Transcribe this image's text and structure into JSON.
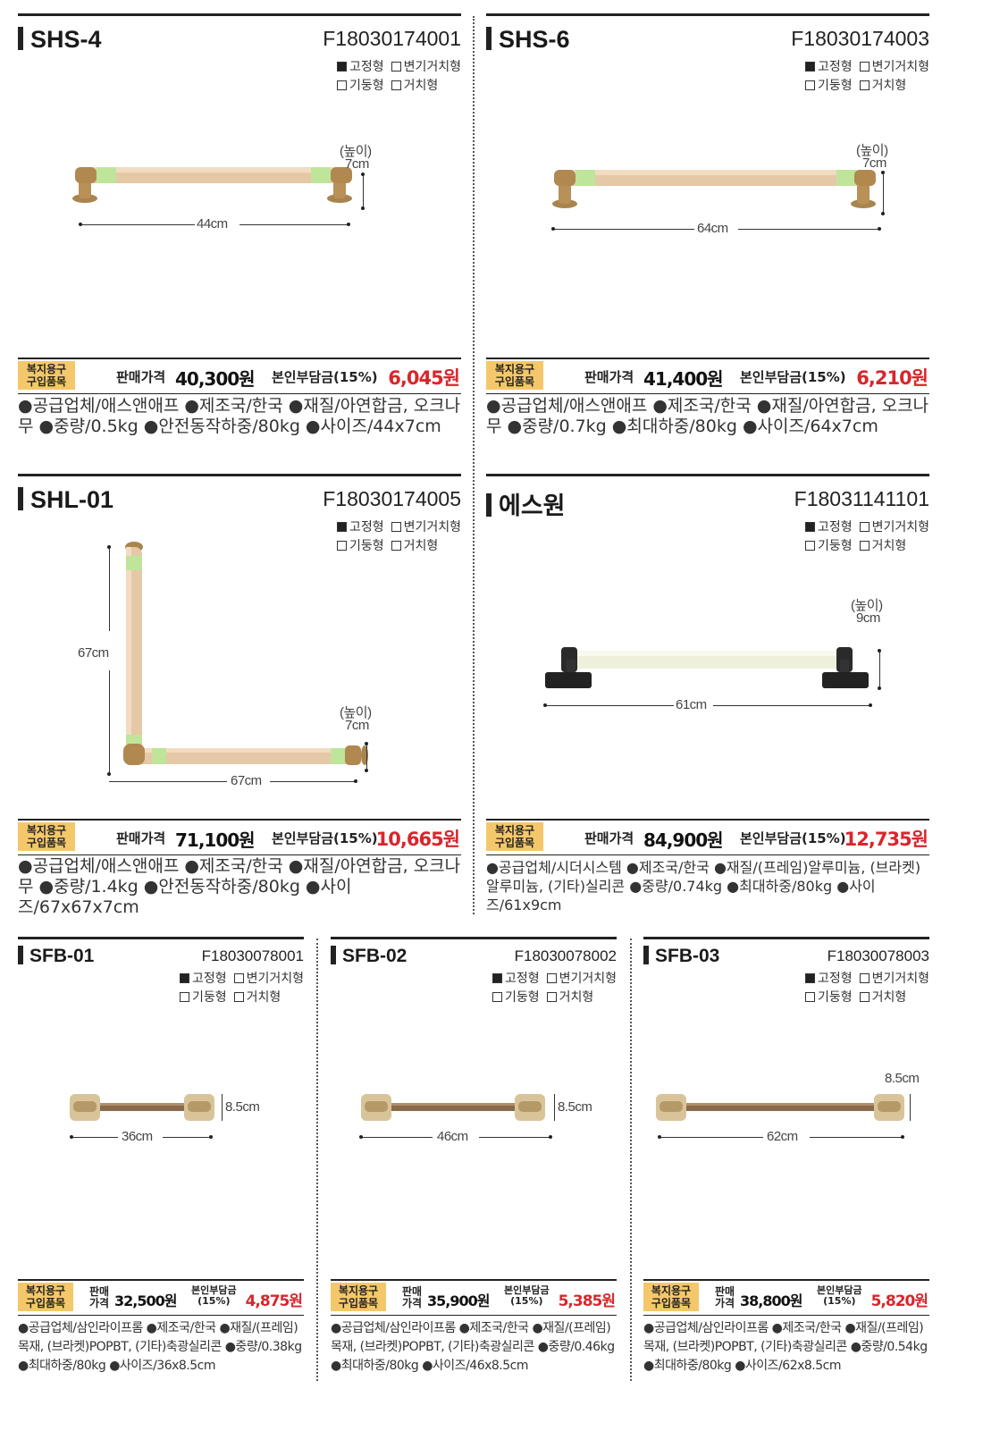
{
  "label_tag": "복지용구\n구입품목",
  "type_labels": [
    "고정형",
    "변기거치형",
    "기둥형",
    "거치형"
  ],
  "big_cards": [
    {
      "name": "SHS-4",
      "code": "F18030174001",
      "price_label": "판매가격",
      "price": "40,300원",
      "burden_label": "본인부담금(15%)",
      "burden": "6,045원",
      "spec": "●공급업체/애스앤애프 ●제조국/한국 ●재질/아연합금, 오크나무 ●중량/0.5kg ●안전동작하중/80kg ●사이즈/44x7cm",
      "dims": {
        "height_label": "(높이)",
        "height": "7cm",
        "width": "44cm"
      }
    },
    {
      "name": "SHS-6",
      "code": "F18030174003",
      "price_label": "판매가격",
      "price": "41,400원",
      "burden_label": "본인부담금(15%)",
      "burden": "6,210원",
      "spec": "●공급업체/애스앤애프 ●제조국/한국 ●재질/아연합금, 오크나무 ●중량/0.7kg ●최대하중/80kg ●사이즈/64x7cm",
      "dims": {
        "height_label": "(높이)",
        "height": "7cm",
        "width": "64cm"
      }
    },
    {
      "name": "SHL-01",
      "code": "F18030174005",
      "price_label": "판매가격",
      "price": "71,100원",
      "burden_label": "본인부담금(15%)",
      "burden": "10,665원",
      "spec": "●공급업체/애스앤애프 ●제조국/한국 ●재질/아연합금, 오크나무 ●중량/1.4kg ●안전동작하중/80kg ●사이즈/67x67x7cm",
      "dims": {
        "height_label": "(높이)",
        "height": "7cm",
        "width": "67cm",
        "vertical": "67cm"
      }
    },
    {
      "name": "에스원",
      "code": "F18031141101",
      "price_label": "판매가격",
      "price": "84,900원",
      "burden_label": "본인부담금(15%)",
      "burden": "12,735원",
      "spec": "●공급업체/시더시스템 ●제조국/한국 ●재질/(프레임)알루미늄, (브라켓)알루미늄, (기타)실리콘 ●중량/0.74kg ●최대하중/80kg ●사이즈/61x9cm",
      "dims": {
        "height_label": "(높이)",
        "height": "9cm",
        "width": "61cm"
      }
    }
  ],
  "small_cards": [
    {
      "name": "SFB-01",
      "code": "F18030078001",
      "price_label": "판매\n가격",
      "price": "32,500원",
      "burden_label": "본인부담금\n(15%)",
      "burden": "4,875원",
      "spec": "●공급업체/삼인라이프롬 ●제조국/한국 ●재질/(프레임)목재, (브라켓)POPBT, (기타)축광실리콘 ●중량/0.38kg ●최대하중/80kg ●사이즈/36x8.5cm",
      "dims": {
        "height": "8.5cm",
        "width": "36cm"
      }
    },
    {
      "name": "SFB-02",
      "code": "F18030078002",
      "price_label": "판매\n가격",
      "price": "35,900원",
      "burden_label": "본인부담금\n(15%)",
      "burden": "5,385원",
      "spec": "●공급업체/삼인라이프롬 ●제조국/한국 ●재질/(프레임)목재, (브라켓)POPBT, (기타)축광실리콘 ●중량/0.46kg ●최대하중/80kg ●사이즈/46x8.5cm",
      "dims": {
        "height": "8.5cm",
        "width": "46cm"
      }
    },
    {
      "name": "SFB-03",
      "code": "F18030078003",
      "price_label": "판매\n가격",
      "price": "38,800원",
      "burden_label": "본인부담금\n(15%)",
      "burden": "5,820원",
      "spec": "●공급업체/삼인라이프롬 ●제조국/한국 ●재질/(프레임)목재, (브라켓)POPBT, (기타)축광실리콘 ●중량/0.54kg ●최대하중/80kg ●사이즈/62x8.5cm",
      "dims": {
        "height": "8.5cm",
        "width": "62cm"
      }
    }
  ],
  "colors": {
    "accent_red": "#d8262c",
    "tag_yellow": "#f4c86a",
    "wood": "#e5c9a6",
    "glow_green": "#bfe59a",
    "brass": "#b08850"
  }
}
